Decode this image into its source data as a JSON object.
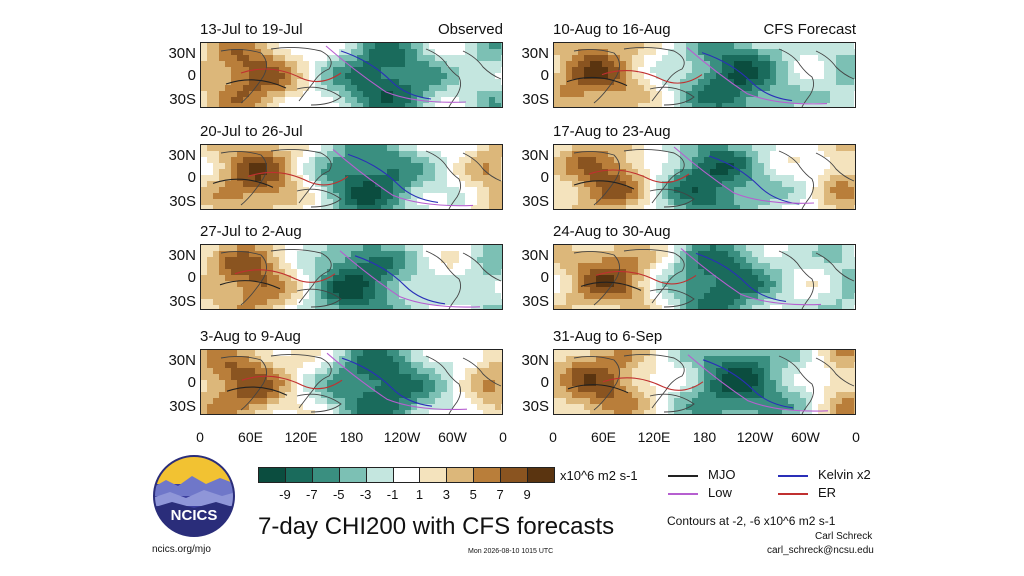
{
  "panels": [
    {
      "title": "13-Jul to 19-Jul",
      "tag": "Observed",
      "pattern": 0
    },
    {
      "title": "10-Aug to 16-Aug",
      "tag": "CFS Forecast",
      "pattern": 4
    },
    {
      "title": "20-Jul to 26-Jul",
      "tag": "",
      "pattern": 1
    },
    {
      "title": "17-Aug to 23-Aug",
      "tag": "",
      "pattern": 5
    },
    {
      "title": "27-Jul to 2-Aug",
      "tag": "",
      "pattern": 2
    },
    {
      "title": "24-Aug to 30-Aug",
      "tag": "",
      "pattern": 6
    },
    {
      "title": "3-Aug to 9-Aug",
      "tag": "",
      "pattern": 3
    },
    {
      "title": "31-Aug to 6-Sep",
      "tag": "",
      "pattern": 7
    }
  ],
  "lat_labels": [
    "30N",
    "0",
    "30S"
  ],
  "lon_labels": [
    "0",
    "60E",
    "120E",
    "180",
    "120W",
    "60W",
    "0"
  ],
  "colorbar": {
    "labels": [
      "-9",
      "-7",
      "-5",
      "-3",
      "-1",
      "1",
      "3",
      "5",
      "7",
      "9"
    ],
    "colors": [
      "#0b4d3f",
      "#1a6b5c",
      "#3a8f80",
      "#7cc0b4",
      "#c4e6df",
      "#ffffff",
      "#f4e3bd",
      "#dcb77a",
      "#b97e3a",
      "#8a5420",
      "#5a3410"
    ],
    "units": "x10^6 m2 s-1"
  },
  "legend": [
    {
      "label": "MJO",
      "color": "#222222"
    },
    {
      "label": "Kelvin x2",
      "color": "#2a2fb8"
    },
    {
      "label": "Low",
      "color": "#b65fd0"
    },
    {
      "label": "ER",
      "color": "#c03030"
    }
  ],
  "contours_note": "Contours at -2, -6 x10^6 m2 s-1",
  "author": "Carl Schreck",
  "email": "carl_schreck@ncsu.edu",
  "title": "7-day CHI200 with CFS forecasts",
  "site": "ncics.org/mjo",
  "timestamp": "Mon 2026-08-10 1015 UTC",
  "logo_text": "NCICS"
}
